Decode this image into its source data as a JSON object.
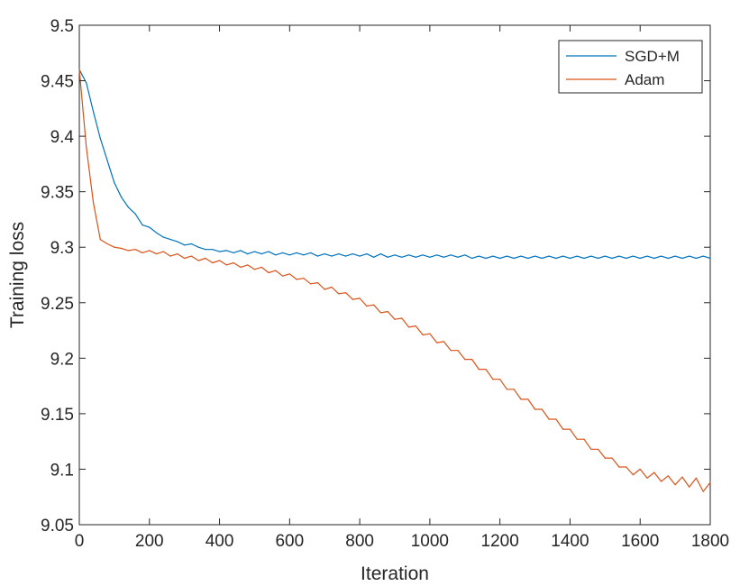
{
  "chart_data": {
    "type": "line",
    "title": "",
    "xlabel": "Iteration",
    "ylabel": "Training loss",
    "xlim": [
      0,
      1800
    ],
    "ylim": [
      9.05,
      9.5
    ],
    "xticks": [
      0,
      200,
      400,
      600,
      800,
      1000,
      1200,
      1400,
      1600,
      1800
    ],
    "xtick_labels": [
      "0",
      "200",
      "400",
      "600",
      "800",
      "1000",
      "1200",
      "1400",
      "1600",
      "1800"
    ],
    "yticks": [
      9.05,
      9.1,
      9.15,
      9.2,
      9.25,
      9.3,
      9.35,
      9.4,
      9.45,
      9.5
    ],
    "ytick_labels": [
      "9.05",
      "9.1",
      "9.15",
      "9.2",
      "9.25",
      "9.3",
      "9.35",
      "9.4",
      "9.45",
      "9.5"
    ],
    "grid": false,
    "legend_position": "top-right",
    "series": [
      {
        "name": "SGD+M",
        "color": "#0072BD",
        "x": [
          0,
          20,
          40,
          60,
          80,
          100,
          120,
          140,
          160,
          180,
          200,
          220,
          240,
          260,
          280,
          300,
          320,
          340,
          360,
          380,
          400,
          420,
          440,
          460,
          480,
          500,
          520,
          540,
          560,
          580,
          600,
          620,
          640,
          660,
          680,
          700,
          720,
          740,
          760,
          780,
          800,
          820,
          840,
          860,
          880,
          900,
          920,
          940,
          960,
          980,
          1000,
          1020,
          1040,
          1060,
          1080,
          1100,
          1120,
          1140,
          1160,
          1180,
          1200,
          1220,
          1240,
          1260,
          1280,
          1300,
          1320,
          1340,
          1360,
          1380,
          1400,
          1420,
          1440,
          1460,
          1480,
          1500,
          1520,
          1540,
          1560,
          1580,
          1600,
          1620,
          1640,
          1660,
          1680,
          1700,
          1720,
          1740,
          1760,
          1780,
          1800
        ],
        "y": [
          9.46,
          9.448,
          9.422,
          9.398,
          9.378,
          9.358,
          9.345,
          9.336,
          9.33,
          9.32,
          9.318,
          9.313,
          9.309,
          9.307,
          9.305,
          9.302,
          9.303,
          9.3,
          9.298,
          9.298,
          9.296,
          9.297,
          9.295,
          9.297,
          9.294,
          9.296,
          9.294,
          9.296,
          9.293,
          9.295,
          9.293,
          9.295,
          9.293,
          9.295,
          9.292,
          9.294,
          9.292,
          9.294,
          9.292,
          9.294,
          9.292,
          9.294,
          9.291,
          9.294,
          9.291,
          9.293,
          9.291,
          9.293,
          9.291,
          9.293,
          9.291,
          9.293,
          9.291,
          9.293,
          9.291,
          9.293,
          9.29,
          9.292,
          9.29,
          9.292,
          9.29,
          9.292,
          9.29,
          9.292,
          9.29,
          9.292,
          9.29,
          9.292,
          9.29,
          9.292,
          9.29,
          9.292,
          9.29,
          9.292,
          9.29,
          9.292,
          9.29,
          9.292,
          9.29,
          9.292,
          9.29,
          9.292,
          9.29,
          9.292,
          9.29,
          9.292,
          9.29,
          9.292,
          9.29,
          9.292,
          9.29
        ]
      },
      {
        "name": "Adam",
        "color": "#D95319",
        "x": [
          0,
          20,
          40,
          60,
          80,
          100,
          120,
          140,
          160,
          180,
          200,
          220,
          240,
          260,
          280,
          300,
          320,
          340,
          360,
          380,
          400,
          420,
          440,
          460,
          480,
          500,
          520,
          540,
          560,
          580,
          600,
          620,
          640,
          660,
          680,
          700,
          720,
          740,
          760,
          780,
          800,
          820,
          840,
          860,
          880,
          900,
          920,
          940,
          960,
          980,
          1000,
          1020,
          1040,
          1060,
          1080,
          1100,
          1120,
          1140,
          1160,
          1180,
          1200,
          1220,
          1240,
          1260,
          1280,
          1300,
          1320,
          1340,
          1360,
          1380,
          1400,
          1420,
          1440,
          1460,
          1480,
          1500,
          1520,
          1540,
          1560,
          1580,
          1600,
          1620,
          1640,
          1660,
          1680,
          1700,
          1720,
          1740,
          1760,
          1780,
          1800
        ],
        "y": [
          9.46,
          9.39,
          9.34,
          9.307,
          9.303,
          9.3,
          9.299,
          9.297,
          9.298,
          9.295,
          9.297,
          9.294,
          9.296,
          9.292,
          9.294,
          9.29,
          9.292,
          9.288,
          9.29,
          9.286,
          9.288,
          9.284,
          9.286,
          9.282,
          9.284,
          9.28,
          9.282,
          9.277,
          9.279,
          9.274,
          9.276,
          9.271,
          9.272,
          9.267,
          9.268,
          9.262,
          9.264,
          9.258,
          9.259,
          9.253,
          9.254,
          9.247,
          9.248,
          9.241,
          9.242,
          9.235,
          9.236,
          9.228,
          9.229,
          9.221,
          9.222,
          9.214,
          9.215,
          9.207,
          9.207,
          9.199,
          9.199,
          9.19,
          9.19,
          9.181,
          9.181,
          9.172,
          9.172,
          9.163,
          9.163,
          9.154,
          9.154,
          9.145,
          9.145,
          9.136,
          9.136,
          9.127,
          9.127,
          9.118,
          9.118,
          9.11,
          9.11,
          9.102,
          9.102,
          9.095,
          9.1,
          9.092,
          9.097,
          9.089,
          9.094,
          9.086,
          9.093,
          9.084,
          9.092,
          9.08,
          9.088
        ]
      }
    ]
  }
}
